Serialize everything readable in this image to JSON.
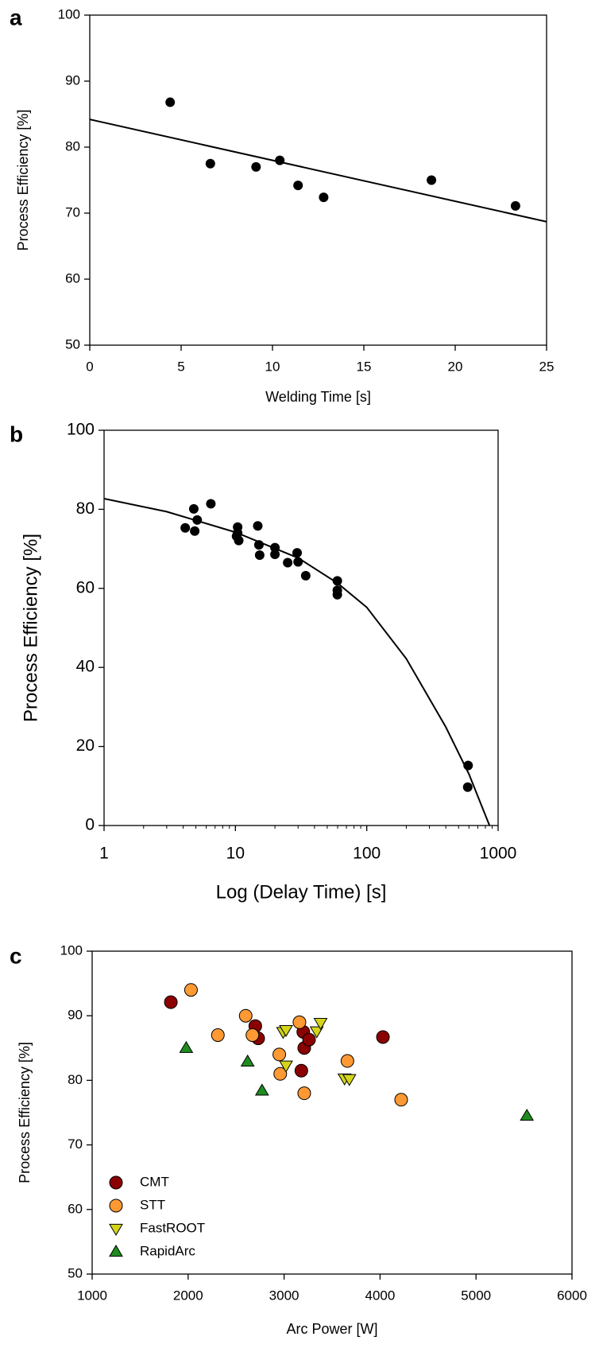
{
  "chart_data": [
    {
      "type": "scatter",
      "panel_label": "a",
      "x_label": "Welding Time [s]",
      "y_label": "Process Efficiency [%]",
      "xlim": [
        0,
        25
      ],
      "xticks": [
        0,
        5,
        10,
        15,
        20,
        25
      ],
      "ylim": [
        50,
        100
      ],
      "yticks": [
        50,
        60,
        70,
        80,
        90,
        100
      ],
      "series": [
        {
          "color": "#000000",
          "marker": "circle",
          "x": [
            4.4,
            6.6,
            9.1,
            10.4,
            11.4,
            12.8,
            18.7,
            23.3
          ],
          "values": [
            86.8,
            77.5,
            77.0,
            78.0,
            74.2,
            72.4,
            75.0,
            71.1
          ]
        }
      ],
      "fit": {
        "color": "#000000",
        "x": [
          0,
          25
        ],
        "values": [
          84.2,
          68.7
        ]
      }
    },
    {
      "type": "scatter",
      "panel_label": "b",
      "x_label": "Log (Delay Time) [s]",
      "y_label": "Process  Efficiency  [%]",
      "xscale": "log",
      "xlim": [
        1,
        1000
      ],
      "xticks": [
        1,
        10,
        100,
        1000
      ],
      "ylim": [
        0,
        100
      ],
      "yticks": [
        0,
        20,
        40,
        60,
        80,
        100
      ],
      "series": [
        {
          "color": "#000000",
          "marker": "circle",
          "x": [
            4.15,
            4.82,
            5.12,
            4.9,
            6.5,
            10.4,
            10.4,
            10.2,
            10.6,
            14.8,
            15.1,
            15.3,
            20,
            20,
            25,
            29.5,
            30,
            34.3,
            59.7,
            59.7,
            59.7,
            591,
            587
          ],
          "values": [
            75.3,
            80.1,
            77.3,
            74.5,
            81.4,
            75.5,
            74.0,
            73.2,
            72.1,
            75.8,
            71.0,
            68.4,
            70.3,
            68.6,
            66.5,
            69.0,
            66.7,
            63.2,
            61.9,
            59.5,
            58.4,
            15.2,
            9.7
          ]
        }
      ],
      "fit": {
        "color": "#000000",
        "x": [
          1,
          3,
          10,
          30,
          60,
          100,
          200,
          400,
          600,
          860
        ],
        "values": [
          82.7,
          79.4,
          74.2,
          67.7,
          61.3,
          55.2,
          42.2,
          24.9,
          13.0,
          0
        ]
      }
    },
    {
      "type": "scatter",
      "panel_label": "c",
      "x_label": "Arc Power [W]",
      "y_label": "Process Efficiency [%]",
      "xlim": [
        1000,
        6000
      ],
      "xticks": [
        1000,
        2000,
        3000,
        4000,
        5000,
        6000
      ],
      "ylim": [
        50,
        100
      ],
      "yticks": [
        50,
        60,
        70,
        80,
        90,
        100
      ],
      "legend": "lower left",
      "series": [
        {
          "name": "CMT",
          "color": "#8b0000",
          "marker": "circle",
          "x": [
            1820,
            2700,
            2730,
            3180,
            3210,
            3200,
            3260,
            4030
          ],
          "values": [
            92.1,
            88.4,
            86.5,
            81.5,
            85.0,
            87.5,
            86.3,
            86.7
          ]
        },
        {
          "name": "STT",
          "color": "#ff9933",
          "marker": "circle",
          "x": [
            2030,
            2310,
            2600,
            2670,
            2950,
            2960,
            3160,
            3210,
            3660,
            4220
          ],
          "values": [
            94.0,
            87.0,
            90.0,
            87.0,
            84.0,
            81.0,
            89.0,
            78.0,
            83.0,
            77.0
          ]
        },
        {
          "name": "FastROOT",
          "color": "#d4d41c",
          "marker": "triangle-down",
          "x": [
            2990,
            3020,
            3020,
            3340,
            3380,
            3630,
            3680
          ],
          "values": [
            87.5,
            82.3,
            87.8,
            87.6,
            88.9,
            80.3,
            80.2
          ]
        },
        {
          "name": "RapidArc",
          "color": "#1e8c1e",
          "marker": "triangle-up",
          "x": [
            1980,
            2620,
            2770,
            5530
          ],
          "values": [
            85.0,
            82.9,
            78.4,
            74.5
          ]
        }
      ]
    }
  ]
}
